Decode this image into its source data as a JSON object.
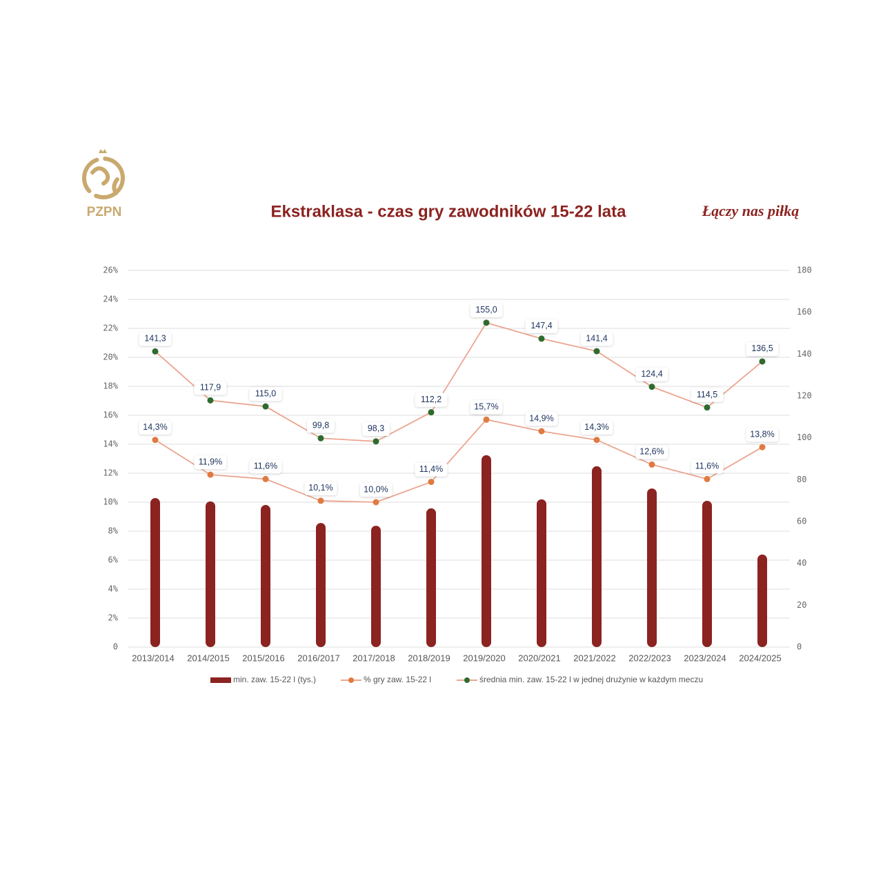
{
  "logo_text": "PZPN",
  "slogan": "Łączy nas piłką",
  "chart_data": {
    "type": "bar",
    "title": "Ekstraklasa - czas gry zawodników 15-22 lata",
    "categories": [
      "2013/2014",
      "2014/2015",
      "2015/2016",
      "2016/2017",
      "2017/2018",
      "2018/2019",
      "2019/2020",
      "2020/2021",
      "2021/2022",
      "2022/2023",
      "2023/2024",
      "2024/2025"
    ],
    "series": [
      {
        "name": "min. zaw. 15-22 l (tys.)",
        "type": "bar",
        "axis": "y2",
        "color": "#8b2320",
        "values": [
          71.2,
          69.6,
          67.9,
          59.3,
          58.0,
          66.3,
          91.7,
          70.6,
          86.4,
          75.8,
          69.9,
          44.2
        ]
      },
      {
        "name": "% gry zaw. 15-22 l",
        "type": "line",
        "color": "#eba58f",
        "marker_color": "#e07a40",
        "values": [
          14.3,
          11.9,
          11.6,
          10.1,
          10.0,
          11.4,
          15.7,
          14.9,
          14.3,
          12.6,
          11.6,
          13.8
        ],
        "value_labels": [
          "14,3%",
          "11,9%",
          "11,6%",
          "10,1%",
          "10,0%",
          "11,4%",
          "15,7%",
          "14,9%",
          "14,3%",
          "12,6%",
          "11,6%",
          "13,8%"
        ]
      },
      {
        "name": "średnia min. zaw. 15-22 l  w jednej drużynie w każdym meczu",
        "type": "line",
        "axis": "y2",
        "color": "#eba58f",
        "marker_color": "#2e6b2e",
        "values": [
          141.3,
          117.9,
          115.0,
          99.8,
          98.3,
          112.2,
          155.0,
          147.4,
          141.4,
          124.4,
          114.5,
          136.5
        ],
        "value_labels": [
          "141,3",
          "117,9",
          "115,0",
          "99,8",
          "98,3",
          "112,2",
          "155,0",
          "147,4",
          "141,4",
          "124,4",
          "114,5",
          "136,5"
        ]
      }
    ],
    "ylim": [
      0,
      26
    ],
    "yticks": [
      0,
      {
        "value": 2,
        "label": "2%"
      },
      {
        "value": 4,
        "label": "4%"
      },
      {
        "value": 6,
        "label": "6%"
      },
      {
        "value": 8,
        "label": "8%"
      },
      {
        "value": 10,
        "label": "10%"
      },
      {
        "value": 12,
        "label": "12%"
      },
      {
        "value": 14,
        "label": "14%"
      },
      {
        "value": 16,
        "label": "16%"
      },
      {
        "value": 18,
        "label": "18%"
      },
      {
        "value": 20,
        "label": "20%"
      },
      {
        "value": 22,
        "label": "22%"
      },
      {
        "value": 24,
        "label": "24%"
      },
      {
        "value": 26,
        "label": "26%"
      }
    ],
    "y2lim": [
      0,
      180
    ],
    "y2ticks": [
      0,
      20,
      40,
      60,
      80,
      100,
      120,
      140,
      160,
      180
    ],
    "grid": true,
    "legend": "bottom"
  }
}
